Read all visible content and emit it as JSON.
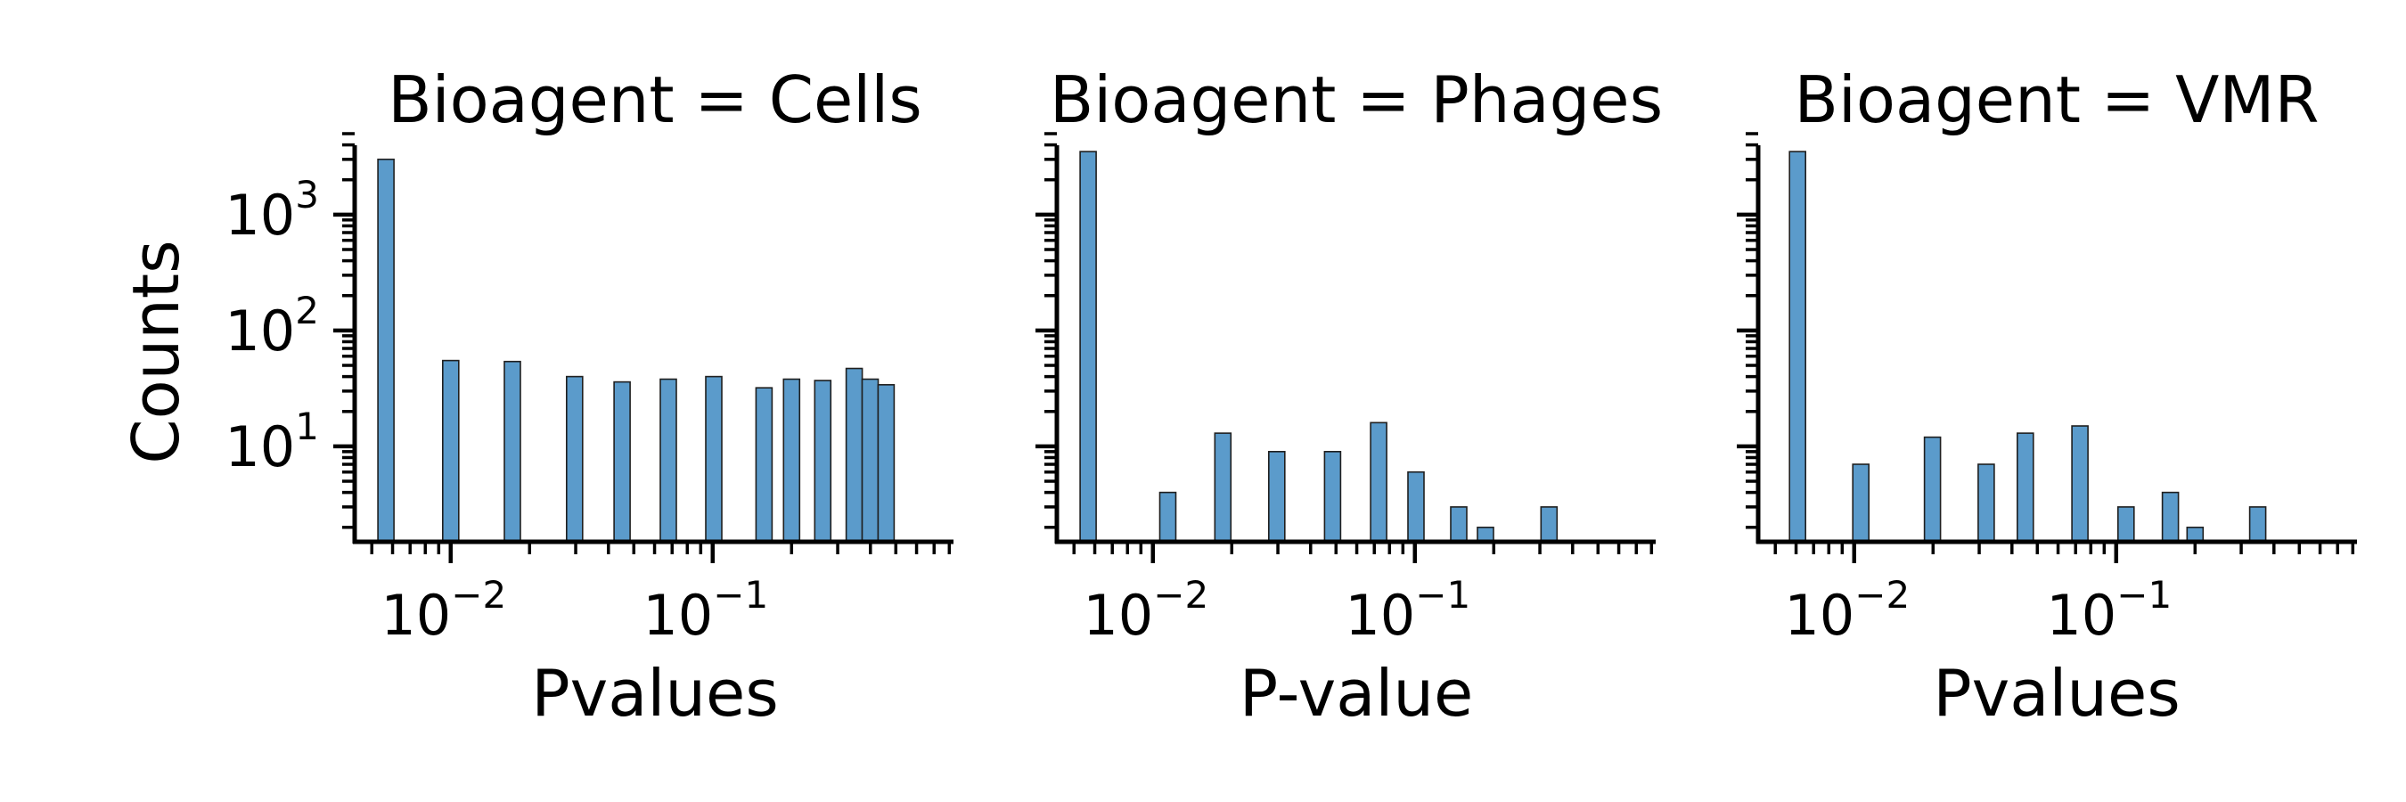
{
  "figure": {
    "bar_color": "#5b9bcb",
    "edge_color": "#1f1f1f",
    "axis_color": "#000000"
  },
  "chart_data": [
    {
      "type": "bar",
      "title": "Bioagent = Cells",
      "xlabel": "Pvalues",
      "ylabel": "Counts",
      "xscale": "log",
      "yscale": "log",
      "xlim": [
        0.0043,
        0.83
      ],
      "ylim": [
        1.5,
        5000
      ],
      "xticks": [
        {
          "base": "10",
          "exp": "−2",
          "value": 0.01
        },
        {
          "base": "10",
          "exp": "−1",
          "value": 0.1
        }
      ],
      "yticks": [
        {
          "base": "10",
          "exp": "1",
          "value": 10
        },
        {
          "base": "10",
          "exp": "2",
          "value": 100
        },
        {
          "base": "10",
          "exp": "3",
          "value": 1000
        }
      ],
      "grid": false,
      "bars": [
        {
          "x": 0.00566,
          "y": 3000
        },
        {
          "x": 0.01,
          "y": 55
        },
        {
          "x": 0.0172,
          "y": 54
        },
        {
          "x": 0.0297,
          "y": 40
        },
        {
          "x": 0.0451,
          "y": 36
        },
        {
          "x": 0.0677,
          "y": 38
        },
        {
          "x": 0.101,
          "y": 40
        },
        {
          "x": 0.157,
          "y": 32
        },
        {
          "x": 0.2,
          "y": 38
        },
        {
          "x": 0.263,
          "y": 37
        },
        {
          "x": 0.347,
          "y": 47
        },
        {
          "x": 0.399,
          "y": 38
        },
        {
          "x": 0.459,
          "y": 34
        }
      ]
    },
    {
      "type": "bar",
      "title": "Bioagent = Phages",
      "xlabel": "P-value",
      "ylabel": "",
      "xscale": "log",
      "yscale": "log",
      "xlim": [
        0.0043,
        0.83
      ],
      "ylim": [
        1.5,
        5000
      ],
      "xticks": [
        {
          "base": "10",
          "exp": "−2",
          "value": 0.01
        },
        {
          "base": "10",
          "exp": "−1",
          "value": 0.1
        }
      ],
      "yticks": [],
      "grid": false,
      "bars": [
        {
          "x": 0.00566,
          "y": 3500
        },
        {
          "x": 0.0114,
          "y": 4
        },
        {
          "x": 0.0185,
          "y": 13
        },
        {
          "x": 0.0297,
          "y": 9
        },
        {
          "x": 0.0485,
          "y": 9
        },
        {
          "x": 0.0727,
          "y": 16
        },
        {
          "x": 0.101,
          "y": 6
        },
        {
          "x": 0.147,
          "y": 3
        },
        {
          "x": 0.186,
          "y": 2
        },
        {
          "x": 0.325,
          "y": 3
        }
      ]
    },
    {
      "type": "bar",
      "title": "Bioagent = VMR",
      "xlabel": "Pvalues",
      "ylabel": "",
      "xscale": "log",
      "yscale": "log",
      "xlim": [
        0.0043,
        0.83
      ],
      "ylim": [
        1.5,
        5000
      ],
      "xticks": [
        {
          "base": "10",
          "exp": "−2",
          "value": 0.01
        },
        {
          "base": "10",
          "exp": "−1",
          "value": 0.1
        }
      ],
      "yticks": [],
      "grid": false,
      "bars": [
        {
          "x": 0.00608,
          "y": 3500
        },
        {
          "x": 0.0106,
          "y": 7
        },
        {
          "x": 0.0199,
          "y": 12
        },
        {
          "x": 0.0319,
          "y": 7
        },
        {
          "x": 0.045,
          "y": 13
        },
        {
          "x": 0.0727,
          "y": 15
        },
        {
          "x": 0.109,
          "y": 3
        },
        {
          "x": 0.161,
          "y": 4
        },
        {
          "x": 0.2,
          "y": 2
        },
        {
          "x": 0.347,
          "y": 3
        }
      ]
    }
  ]
}
